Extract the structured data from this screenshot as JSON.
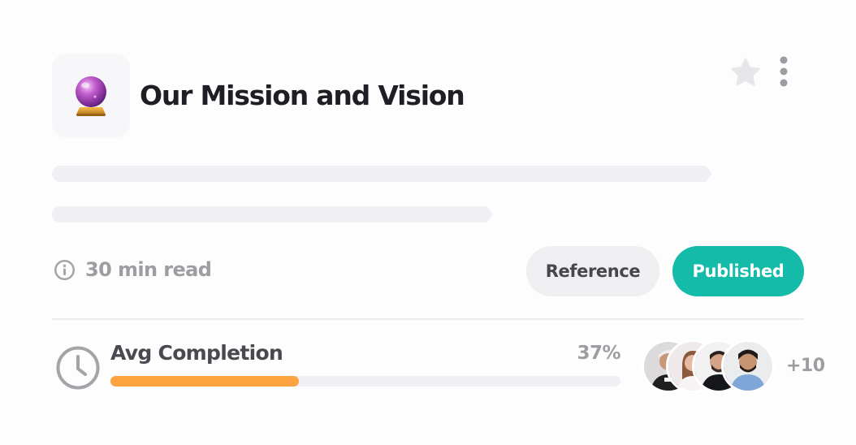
{
  "header": {
    "title": "Our Mission and Vision",
    "emoji_icon": "crystal-ball-icon"
  },
  "actions": {
    "favorite_icon": "star-icon",
    "menu_icon": "more-vertical-icon"
  },
  "meta": {
    "read_time": "30 min read",
    "read_time_icon": "info-icon",
    "tags": [
      {
        "label": "Reference",
        "color": "#efeef1",
        "text_color": "#47464d"
      },
      {
        "label": "Published",
        "color": "#13bba8",
        "text_color": "#ffffff"
      }
    ]
  },
  "completion": {
    "icon": "clock-icon",
    "label": "Avg Completion",
    "percent_label": "37%",
    "percent": 37,
    "bar_color": "#fca23f"
  },
  "participants": {
    "avatars": [
      "avatar-1",
      "avatar-2",
      "avatar-3",
      "avatar-4"
    ],
    "more_label": "+10"
  }
}
